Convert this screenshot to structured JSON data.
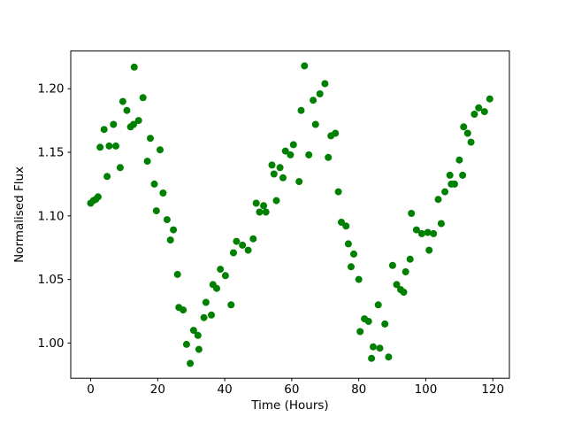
{
  "figure": {
    "background": "#ffffff",
    "frame_color": "#000000"
  },
  "chart_data": {
    "type": "scatter",
    "title": "",
    "xlabel": "Time (Hours)",
    "ylabel": "Normalised Flux",
    "legend": null,
    "grid": false,
    "marker": "circle",
    "marker_color": "#008000",
    "marker_radius_px": 4,
    "xlim": [
      -5.95,
      124.95
    ],
    "ylim": [
      0.9723,
      1.2297
    ],
    "x_ticks": [
      0,
      20,
      40,
      60,
      80,
      100,
      120
    ],
    "x_tick_labels": [
      "0",
      "20",
      "40",
      "60",
      "80",
      "100",
      "120"
    ],
    "y_ticks": [
      1.0,
      1.05,
      1.1,
      1.15,
      1.2
    ],
    "y_tick_labels": [
      "1.00",
      "1.05",
      "1.10",
      "1.15",
      "1.20"
    ],
    "points": [
      [
        0.0,
        1.11
      ],
      [
        0.8,
        1.112
      ],
      [
        1.5,
        1.113
      ],
      [
        2.2,
        1.115
      ],
      [
        2.8,
        1.154
      ],
      [
        4.0,
        1.168
      ],
      [
        4.9,
        1.131
      ],
      [
        5.5,
        1.155
      ],
      [
        6.8,
        1.172
      ],
      [
        7.5,
        1.155
      ],
      [
        8.8,
        1.138
      ],
      [
        9.6,
        1.19
      ],
      [
        10.8,
        1.183
      ],
      [
        11.9,
        1.17
      ],
      [
        12.8,
        1.172
      ],
      [
        13.0,
        1.217
      ],
      [
        14.3,
        1.175
      ],
      [
        15.6,
        1.193
      ],
      [
        16.9,
        1.143
      ],
      [
        17.8,
        1.161
      ],
      [
        19.0,
        1.125
      ],
      [
        19.6,
        1.104
      ],
      [
        20.7,
        1.152
      ],
      [
        21.6,
        1.118
      ],
      [
        22.8,
        1.097
      ],
      [
        23.8,
        1.081
      ],
      [
        24.7,
        1.089
      ],
      [
        25.9,
        1.054
      ],
      [
        26.3,
        1.028
      ],
      [
        27.6,
        1.026
      ],
      [
        28.6,
        0.999
      ],
      [
        29.7,
        0.984
      ],
      [
        30.7,
        1.01
      ],
      [
        32.0,
        1.006
      ],
      [
        32.3,
        0.995
      ],
      [
        33.8,
        1.02
      ],
      [
        34.4,
        1.032
      ],
      [
        36.0,
        1.022
      ],
      [
        36.5,
        1.046
      ],
      [
        37.6,
        1.043
      ],
      [
        38.7,
        1.058
      ],
      [
        40.2,
        1.053
      ],
      [
        41.9,
        1.03
      ],
      [
        42.6,
        1.071
      ],
      [
        43.5,
        1.08
      ],
      [
        45.3,
        1.077
      ],
      [
        47.0,
        1.073
      ],
      [
        48.5,
        1.082
      ],
      [
        49.4,
        1.11
      ],
      [
        50.4,
        1.103
      ],
      [
        51.6,
        1.108
      ],
      [
        52.3,
        1.103
      ],
      [
        54.1,
        1.14
      ],
      [
        54.7,
        1.133
      ],
      [
        55.4,
        1.112
      ],
      [
        56.5,
        1.138
      ],
      [
        57.4,
        1.13
      ],
      [
        58.1,
        1.151
      ],
      [
        59.6,
        1.148
      ],
      [
        60.5,
        1.156
      ],
      [
        62.2,
        1.127
      ],
      [
        62.8,
        1.183
      ],
      [
        63.8,
        1.218
      ],
      [
        65.1,
        1.148
      ],
      [
        66.4,
        1.191
      ],
      [
        67.1,
        1.172
      ],
      [
        68.4,
        1.196
      ],
      [
        69.9,
        1.204
      ],
      [
        70.9,
        1.146
      ],
      [
        71.7,
        1.163
      ],
      [
        73.0,
        1.165
      ],
      [
        73.9,
        1.119
      ],
      [
        74.8,
        1.095
      ],
      [
        76.2,
        1.092
      ],
      [
        76.9,
        1.078
      ],
      [
        77.7,
        1.06
      ],
      [
        78.5,
        1.07
      ],
      [
        80.0,
        1.05
      ],
      [
        80.4,
        1.009
      ],
      [
        81.7,
        1.019
      ],
      [
        82.9,
        1.017
      ],
      [
        83.8,
        0.988
      ],
      [
        84.3,
        0.997
      ],
      [
        85.8,
        1.03
      ],
      [
        86.3,
        0.996
      ],
      [
        87.8,
        1.015
      ],
      [
        88.9,
        0.989
      ],
      [
        90.1,
        1.061
      ],
      [
        91.3,
        1.046
      ],
      [
        92.5,
        1.042
      ],
      [
        93.4,
        1.04
      ],
      [
        94.0,
        1.056
      ],
      [
        95.3,
        1.066
      ],
      [
        95.7,
        1.102
      ],
      [
        97.2,
        1.089
      ],
      [
        98.8,
        1.086
      ],
      [
        100.6,
        1.087
      ],
      [
        101.0,
        1.073
      ],
      [
        102.3,
        1.086
      ],
      [
        103.7,
        1.113
      ],
      [
        104.6,
        1.094
      ],
      [
        105.7,
        1.119
      ],
      [
        107.2,
        1.132
      ],
      [
        107.6,
        1.125
      ],
      [
        108.6,
        1.125
      ],
      [
        110.0,
        1.144
      ],
      [
        111.0,
        1.132
      ],
      [
        111.3,
        1.17
      ],
      [
        112.5,
        1.165
      ],
      [
        113.5,
        1.158
      ],
      [
        114.5,
        1.18
      ],
      [
        115.8,
        1.185
      ],
      [
        117.5,
        1.182
      ],
      [
        119.1,
        1.192
      ]
    ]
  }
}
